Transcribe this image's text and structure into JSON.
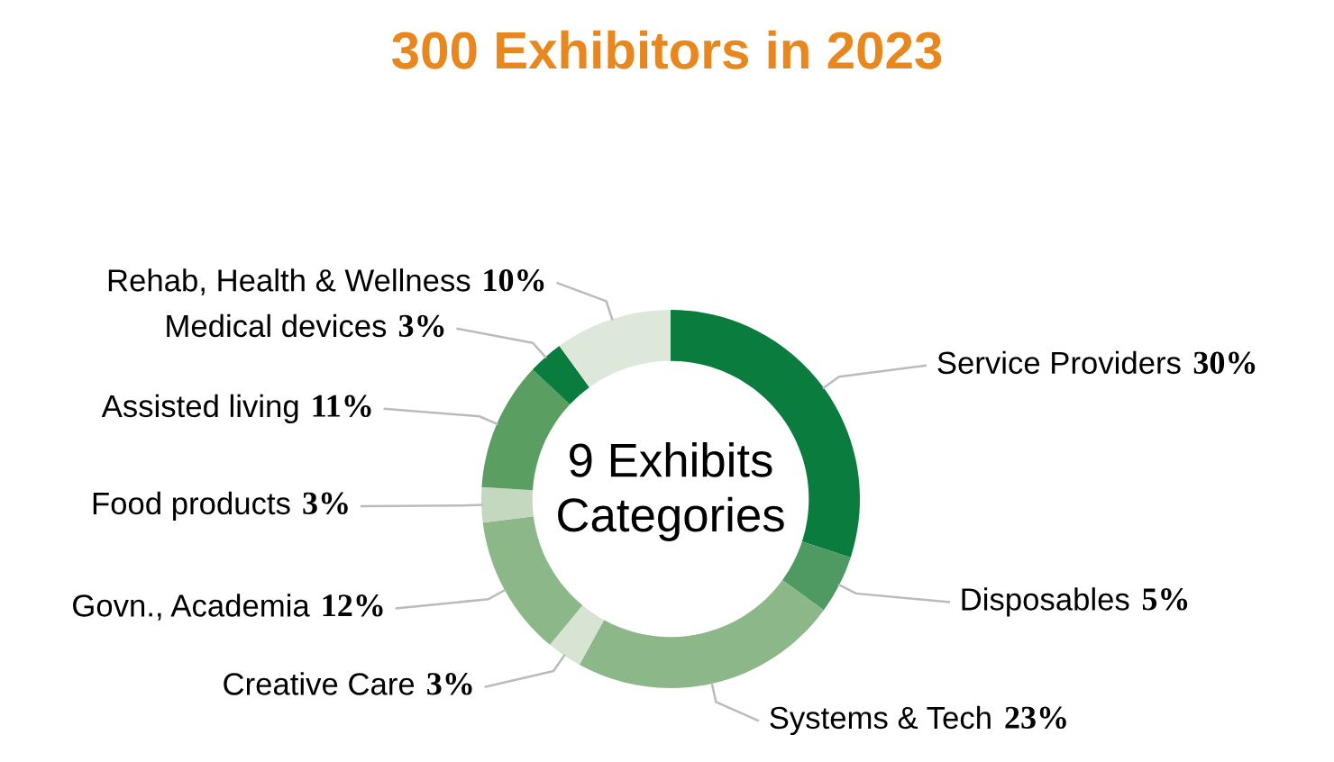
{
  "chart_data": {
    "type": "donut",
    "title": "300 Exhibitors in 2023",
    "categories": [
      "Service Providers",
      "Disposables",
      "Systems & Tech",
      "Creative Care",
      "Govn., Academia",
      "Food products",
      "Assisted living",
      "Medical devices",
      "Rehab, Health & Wellness"
    ],
    "values": [
      30,
      5,
      23,
      3,
      12,
      3,
      11,
      3,
      10
    ],
    "value_labels": [
      "30%",
      "5%",
      "23%",
      "3%",
      "12%",
      "3%",
      "11%",
      "3%",
      "10%"
    ],
    "colors": [
      "#0a7d3e",
      "#4e9a62",
      "#8cb889",
      "#d7e4d3",
      "#8cb889",
      "#c3d8bf",
      "#5a9e62",
      "#0a7d3e",
      "#dde7da"
    ],
    "annotations": [
      "9 Exhibits\nCategories"
    ],
    "legend": false
  }
}
